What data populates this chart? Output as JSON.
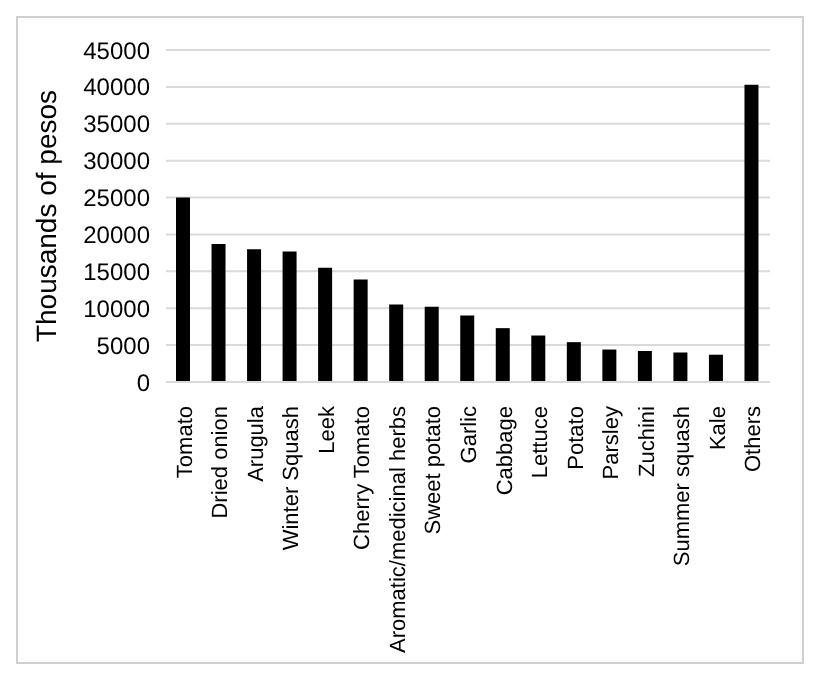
{
  "chart_data": {
    "type": "bar",
    "ylabel": "Thousands of pesos",
    "categories": [
      "Tomato",
      "Dried onion",
      "Arugula",
      "Winter Squash",
      "Leek",
      "Cherry Tomato",
      "Aromatic/medicinal herbs",
      "Sweet potato",
      "Garlic",
      "Cabbage",
      "Lettuce",
      "Potato",
      "Parsley",
      "Zuchini",
      "Summer squash",
      "Kale",
      "Others"
    ],
    "values": [
      25000,
      18700,
      18000,
      17700,
      15500,
      13900,
      10500,
      10200,
      9000,
      7300,
      6300,
      5400,
      4400,
      4200,
      4000,
      3700,
      40300
    ],
    "color": "#000000",
    "ylim": [
      0,
      45000
    ],
    "yticks": [
      0,
      5000,
      10000,
      15000,
      20000,
      25000,
      30000,
      35000,
      40000,
      45000
    ],
    "grid": "y"
  }
}
